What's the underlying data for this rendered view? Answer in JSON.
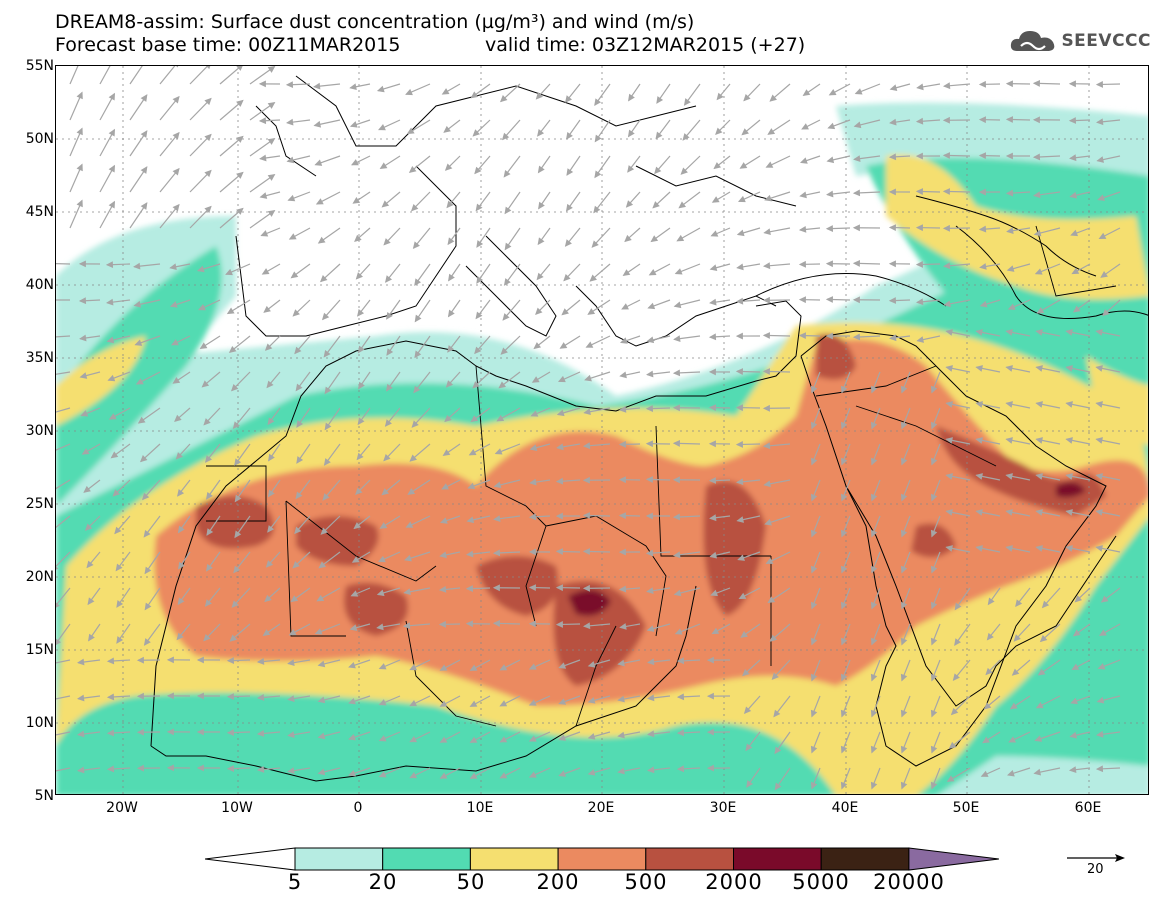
{
  "header": {
    "title_line1": "DREAM8-assim: Surface dust concentration (µg/m³) and wind (m/s)",
    "base_time": "Forecast base time: 00Z11MAR2015",
    "valid_time": "valid time: 03Z12MAR2015 (+27)"
  },
  "logo": {
    "text": "SEEVCCC",
    "icon": "cloud-logo-icon"
  },
  "axes": {
    "lat_labels": [
      "55N",
      "50N",
      "45N",
      "40N",
      "35N",
      "30N",
      "25N",
      "20N",
      "15N",
      "10N",
      "5N"
    ],
    "lon_labels": [
      "20W",
      "10W",
      "0",
      "10E",
      "20E",
      "30E",
      "40E",
      "50E",
      "60E"
    ]
  },
  "colorbar": {
    "labels": [
      "5",
      "20",
      "50",
      "200",
      "500",
      "2000",
      "5000",
      "20000"
    ],
    "colors": [
      "#b6ece2",
      "#52dbb2",
      "#f5df70",
      "#eb8a60",
      "#b85140",
      "#7a0a2a",
      "#3b2214",
      "#8a6aa0"
    ]
  },
  "reference_vector": {
    "label": "20"
  }
}
